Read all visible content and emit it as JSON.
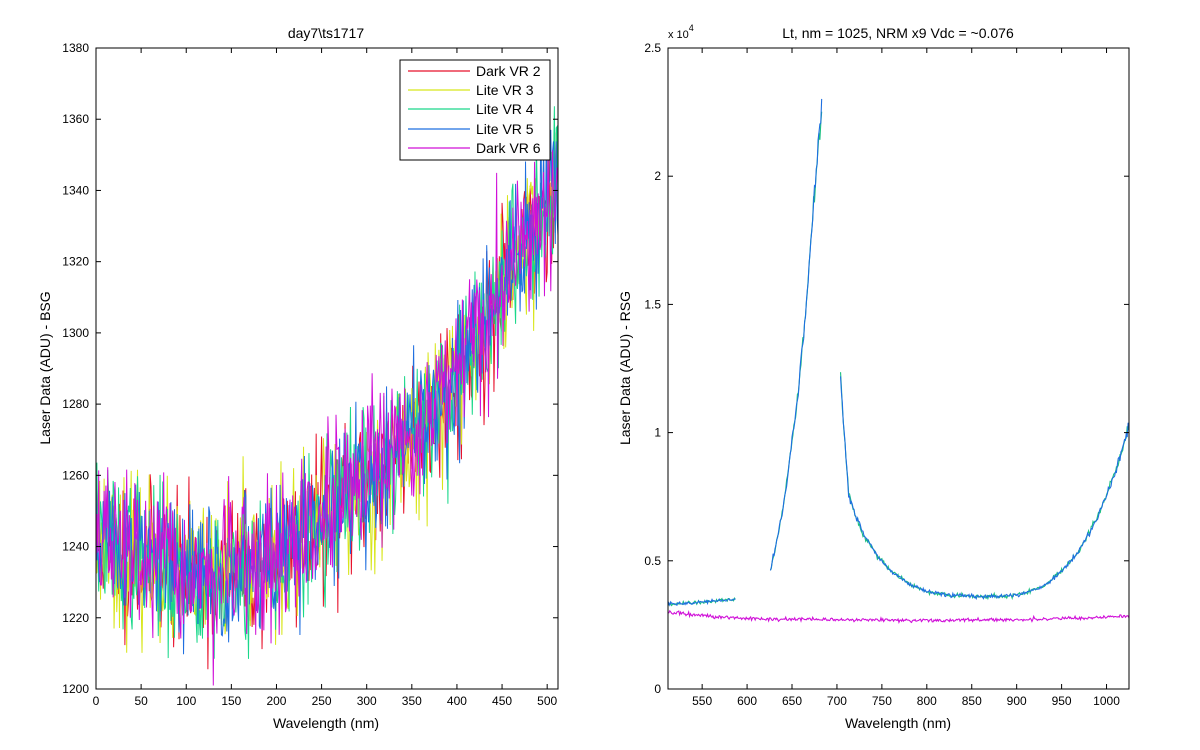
{
  "chart_data": [
    {
      "type": "line",
      "title": "day7\\ts1717",
      "xlabel": "Wavelength (nm)",
      "ylabel": "Laser Data (ADU) - BSG",
      "xlim": [
        0,
        512
      ],
      "ylim": [
        1200,
        1380
      ],
      "xticks": [
        0,
        50,
        100,
        150,
        200,
        250,
        300,
        350,
        400,
        450,
        500
      ],
      "yticks": [
        1200,
        1220,
        1240,
        1260,
        1280,
        1300,
        1320,
        1340,
        1360,
        1380
      ],
      "grid": false,
      "legend_position": "top-right",
      "series": [
        {
          "name": "Dark VR 2",
          "color": "#e8102a",
          "noise": 14,
          "seed": 11,
          "baseline": {
            "x": [
              0,
              20,
              60,
              100,
              150,
              200,
              250,
              300,
              350,
              400,
              450,
              490,
              512
            ],
            "y": [
              1244,
              1240,
              1236,
              1231,
              1232,
              1236,
              1247,
              1258,
              1271,
              1288,
              1312,
              1332,
              1345
            ]
          }
        },
        {
          "name": "Lite VR 3",
          "color": "#d8e61a",
          "noise": 14,
          "seed": 23,
          "baseline": {
            "x": [
              0,
              20,
              60,
              100,
              150,
              200,
              250,
              300,
              350,
              400,
              450,
              490,
              512
            ],
            "y": [
              1244,
              1240,
              1236,
              1231,
              1232,
              1236,
              1247,
              1258,
              1271,
              1288,
              1312,
              1332,
              1345
            ]
          }
        },
        {
          "name": "Lite VR 4",
          "color": "#1ad88a",
          "noise": 14,
          "seed": 37,
          "baseline": {
            "x": [
              0,
              20,
              60,
              100,
              150,
              200,
              250,
              300,
              350,
              400,
              450,
              490,
              512
            ],
            "y": [
              1244,
              1240,
              1236,
              1231,
              1232,
              1236,
              1247,
              1258,
              1271,
              1288,
              1312,
              1332,
              1345
            ]
          }
        },
        {
          "name": "Lite VR 5",
          "color": "#1f6fe0",
          "noise": 14,
          "seed": 51,
          "baseline": {
            "x": [
              0,
              20,
              60,
              100,
              150,
              200,
              250,
              300,
              350,
              400,
              450,
              490,
              512
            ],
            "y": [
              1244,
              1240,
              1236,
              1231,
              1232,
              1236,
              1247,
              1258,
              1271,
              1288,
              1312,
              1332,
              1345
            ]
          }
        },
        {
          "name": "Dark VR 6",
          "color": "#d010d8",
          "noise": 14,
          "seed": 67,
          "baseline": {
            "x": [
              0,
              20,
              60,
              100,
              150,
              200,
              250,
              300,
              350,
              400,
              450,
              490,
              512
            ],
            "y": [
              1244,
              1240,
              1236,
              1231,
              1232,
              1236,
              1247,
              1258,
              1271,
              1288,
              1312,
              1332,
              1345
            ]
          }
        }
      ]
    },
    {
      "type": "line",
      "title": "Lt, nm = 1025, NRM x9 Vdc = ~0.076",
      "xlabel": "Wavelength (nm)",
      "ylabel": "Laser Data (ADU) - RSG",
      "xlim": [
        512,
        1025
      ],
      "ylim": [
        0,
        25000
      ],
      "xticks": [
        550,
        600,
        650,
        700,
        750,
        800,
        850,
        900,
        950,
        1000
      ],
      "yticks": [
        0,
        5000,
        10000,
        15000,
        20000,
        25000
      ],
      "ytick_labels": [
        "0",
        "0.5",
        "1",
        "1.5",
        "2",
        "2.5"
      ],
      "y_multiplier_label": "x 10",
      "y_multiplier_exponent": "4",
      "grid": false,
      "series": [
        {
          "color": "#1ac080",
          "noise": 0.02,
          "segments": [
            {
              "x": [
                512,
                540,
                587
              ],
              "y": [
                3300,
                3350,
                3500
              ]
            },
            {
              "x": [
                626,
                640,
                655,
                665,
                672,
                678,
                683
              ],
              "y": [
                4600,
                7000,
                11000,
                14500,
                17800,
                20500,
                22500
              ]
            },
            {
              "x": [
                704,
                708,
                713,
                720,
                730,
                745,
                760,
                780,
                800,
                830,
                860,
                900,
                930,
                950,
                970,
                990,
                1005,
                1015,
                1025
              ],
              "y": [
                12200,
                10000,
                7600,
                6800,
                6000,
                5200,
                4600,
                4100,
                3800,
                3650,
                3600,
                3650,
                4000,
                4600,
                5400,
                6700,
                8000,
                9000,
                10300
              ]
            }
          ]
        },
        {
          "color": "#1f6fe0",
          "noise": 0.02,
          "segments": [
            {
              "x": [
                512,
                540,
                587
              ],
              "y": [
                3300,
                3350,
                3500
              ]
            },
            {
              "x": [
                626,
                640,
                655,
                665,
                672,
                678,
                683
              ],
              "y": [
                4600,
                7000,
                11000,
                14500,
                17800,
                20800,
                22900
              ]
            },
            {
              "x": [
                704,
                708,
                713,
                720,
                730,
                745,
                760,
                780,
                800,
                830,
                860,
                900,
                930,
                950,
                970,
                990,
                1005,
                1015,
                1025
              ],
              "y": [
                12200,
                10000,
                7600,
                6800,
                6000,
                5200,
                4600,
                4100,
                3800,
                3650,
                3600,
                3650,
                4000,
                4600,
                5400,
                6700,
                8000,
                9000,
                10300
              ]
            }
          ]
        },
        {
          "color": "#d010d8",
          "noise": 0.025,
          "segments": [
            {
              "x": [
                512,
                550,
                600,
                700,
                800,
                900,
                1000,
                1025
              ],
              "y": [
                3000,
                2850,
                2750,
                2700,
                2680,
                2700,
                2800,
                2850
              ]
            }
          ]
        }
      ]
    }
  ]
}
